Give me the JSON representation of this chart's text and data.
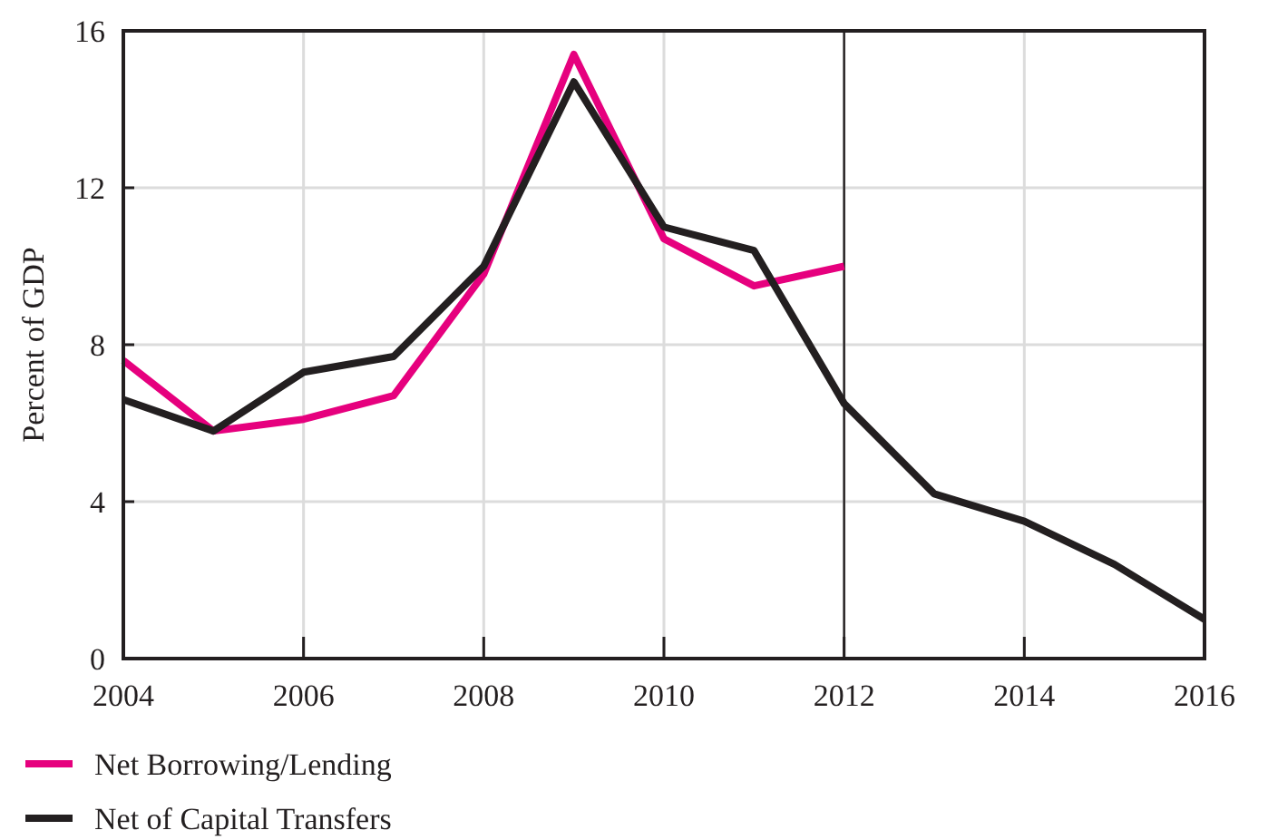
{
  "chart_data": {
    "type": "line",
    "ylabel": "Percent of GDP",
    "x": [
      2004,
      2005,
      2006,
      2007,
      2008,
      2009,
      2010,
      2011,
      2012,
      2013,
      2014,
      2015,
      2016
    ],
    "series": [
      {
        "name": "Net Borrowing/Lending",
        "color": "#e6007e",
        "values": [
          7.6,
          5.8,
          6.1,
          6.7,
          9.8,
          15.4,
          10.7,
          9.5,
          10.0,
          null,
          null,
          null,
          null
        ]
      },
      {
        "name": "Net of Capital Transfers",
        "color": "#231f20",
        "values": [
          6.6,
          5.8,
          7.3,
          7.7,
          10.0,
          14.7,
          11.0,
          10.4,
          6.5,
          4.2,
          3.5,
          2.4,
          1.0
        ]
      }
    ],
    "xlim": [
      2004,
      2016
    ],
    "xticks": [
      2004,
      2006,
      2008,
      2010,
      2012,
      2014,
      2016
    ],
    "ylim": [
      0,
      16
    ],
    "yticks": [
      0,
      4,
      8,
      12,
      16
    ],
    "ref_lines": [
      {
        "axis": "x",
        "value": 2012,
        "color": "#231f20"
      }
    ],
    "grid": true,
    "legend": "bottom left",
    "marker": "none",
    "line_style": "solid"
  }
}
